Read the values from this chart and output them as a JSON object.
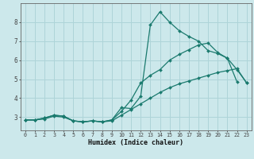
{
  "xlabel": "Humidex (Indice chaleur)",
  "bg_color": "#cce8eb",
  "grid_color": "#aed4d8",
  "line_color": "#1a7a6e",
  "xlim": [
    -0.5,
    23.5
  ],
  "ylim": [
    2.3,
    9.0
  ],
  "xticks": [
    0,
    1,
    2,
    3,
    4,
    5,
    6,
    7,
    8,
    9,
    10,
    11,
    12,
    13,
    14,
    15,
    16,
    17,
    18,
    19,
    20,
    21,
    22,
    23
  ],
  "yticks": [
    3,
    4,
    5,
    6,
    7,
    8
  ],
  "curve1_x": [
    0,
    1,
    2,
    3,
    4,
    5,
    6,
    7,
    8,
    9,
    10,
    11,
    12,
    13,
    14,
    15,
    16,
    17,
    18,
    19,
    20,
    21,
    22
  ],
  "curve1_y": [
    2.85,
    2.85,
    2.95,
    3.1,
    3.05,
    2.8,
    2.75,
    2.8,
    2.75,
    2.85,
    3.5,
    3.45,
    4.1,
    7.85,
    8.55,
    8.0,
    7.55,
    7.25,
    7.0,
    6.5,
    6.35,
    6.1,
    4.85
  ],
  "curve2_x": [
    0,
    1,
    2,
    3,
    4,
    5,
    6,
    7,
    8,
    9,
    10,
    11,
    12,
    13,
    14,
    15,
    16,
    17,
    18,
    19,
    20,
    21,
    22,
    23
  ],
  "curve2_y": [
    2.85,
    2.85,
    2.95,
    3.1,
    3.05,
    2.8,
    2.75,
    2.8,
    2.75,
    2.85,
    3.3,
    3.9,
    4.8,
    5.2,
    5.5,
    6.0,
    6.3,
    6.55,
    6.8,
    6.9,
    6.4,
    6.1,
    5.5,
    4.8
  ],
  "curve3_x": [
    0,
    1,
    2,
    3,
    4,
    5,
    6,
    7,
    8,
    9,
    10,
    11,
    12,
    13,
    14,
    15,
    16,
    17,
    18,
    19,
    20,
    21,
    22,
    23
  ],
  "curve3_y": [
    2.85,
    2.85,
    2.9,
    3.05,
    3.0,
    2.8,
    2.75,
    2.8,
    2.75,
    2.8,
    3.1,
    3.4,
    3.7,
    4.0,
    4.3,
    4.55,
    4.75,
    4.9,
    5.05,
    5.2,
    5.35,
    5.45,
    5.55,
    4.8
  ]
}
